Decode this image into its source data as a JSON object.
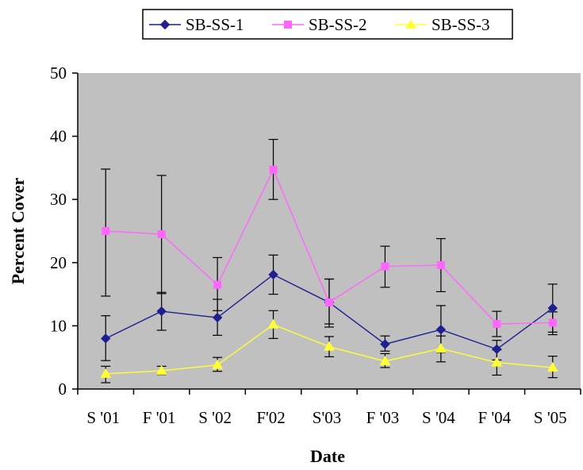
{
  "chart_data": {
    "type": "line",
    "title": "",
    "xlabel": "Date",
    "ylabel": "Percent Cover",
    "categories": [
      "S '01",
      "F '01",
      "S '02",
      "F'02",
      "S'03",
      "F '03",
      "S '04",
      "F '04",
      "S '05"
    ],
    "ylim": [
      0,
      50
    ],
    "yticks": [
      0,
      10,
      20,
      30,
      40,
      50
    ],
    "grid": false,
    "legend_position": "top",
    "plot_background": "#c0c0c0",
    "series": [
      {
        "name": "SB-SS-1",
        "color": "#1f1f8f",
        "marker": "diamond",
        "values": [
          8.0,
          12.3,
          11.3,
          18.1,
          13.7,
          7.1,
          9.4,
          6.3,
          12.8
        ],
        "err_low": [
          4.5,
          9.3,
          8.5,
          15.0,
          10.3,
          6.0,
          5.8,
          4.6,
          9.0
        ],
        "err_high": [
          11.6,
          15.3,
          14.2,
          21.2,
          17.4,
          8.4,
          13.2,
          7.7,
          16.6
        ]
      },
      {
        "name": "SB-SS-2",
        "color": "#ff66ff",
        "marker": "square",
        "values": [
          25.0,
          24.5,
          16.5,
          34.7,
          13.7,
          19.4,
          19.6,
          10.3,
          10.5
        ],
        "err_low": [
          14.7,
          15.1,
          12.4,
          30.0,
          9.8,
          16.1,
          15.4,
          8.3,
          8.6
        ],
        "err_high": [
          34.8,
          33.8,
          20.8,
          39.5,
          17.4,
          22.6,
          23.8,
          12.3,
          12.2
        ]
      },
      {
        "name": "SB-SS-3",
        "color": "#ffff33",
        "marker": "triangle",
        "values": [
          2.4,
          2.9,
          3.8,
          10.2,
          6.7,
          4.4,
          6.4,
          4.2,
          3.4
        ],
        "err_low": [
          1.0,
          2.3,
          2.8,
          8.0,
          5.1,
          3.4,
          4.3,
          2.2,
          1.8
        ],
        "err_high": [
          3.6,
          3.6,
          5.0,
          12.4,
          8.3,
          5.6,
          8.4,
          6.2,
          5.2
        ]
      }
    ]
  }
}
